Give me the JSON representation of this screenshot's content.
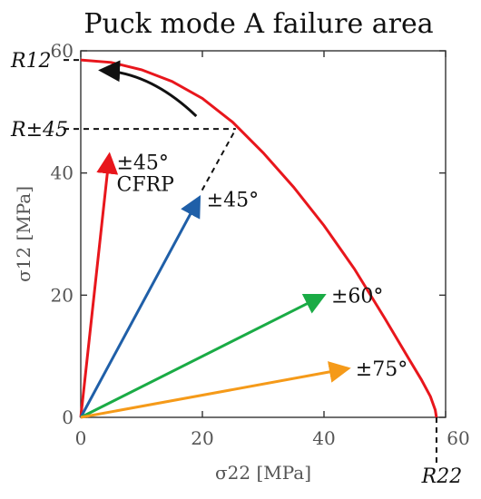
{
  "chart_data": {
    "type": "line",
    "title": "Puck mode A failure area",
    "xlabel": "σ22 [MPa]",
    "ylabel": "σ12 [MPa]",
    "xlim": [
      0,
      60
    ],
    "ylim": [
      0,
      60
    ],
    "xticks": [
      0,
      20,
      40,
      60
    ],
    "yticks": [
      0,
      20,
      40,
      60
    ],
    "grid": false,
    "failure_curve": {
      "color": "#e8161c",
      "points": [
        [
          0,
          58.5
        ],
        [
          5,
          58.1
        ],
        [
          10,
          56.9
        ],
        [
          15,
          55.0
        ],
        [
          20,
          52.2
        ],
        [
          25,
          48.3
        ],
        [
          30,
          43.3
        ],
        [
          35,
          37.7
        ],
        [
          40,
          31.4
        ],
        [
          45,
          24.3
        ],
        [
          50,
          16.2
        ],
        [
          54,
          9.5
        ],
        [
          56,
          6.2
        ],
        [
          57.5,
          3.4
        ],
        [
          58.3,
          1.2
        ],
        [
          58.5,
          0
        ]
      ]
    },
    "reference_values": [
      {
        "label": "R12",
        "x": 0,
        "y": 58.5
      },
      {
        "label": "R±45",
        "x": 25.5,
        "y": 47.2
      },
      {
        "label": "R22",
        "x": 58.5,
        "y": 0
      }
    ],
    "load_paths": [
      {
        "label": "±45°",
        "sublabel": "CFRP",
        "color": "#e8161c",
        "end": [
          4.7,
          43
        ]
      },
      {
        "label": "±45°",
        "color": "#1f5fa8",
        "end": [
          19.5,
          36
        ]
      },
      {
        "label": "±60°",
        "color": "#1aab45",
        "end": [
          40,
          20
        ]
      },
      {
        "label": "±75°",
        "color": "#f59a19",
        "end": [
          44,
          8
        ]
      }
    ],
    "direction_arrow": {
      "color": "#111111",
      "from": [
        19,
        49.3
      ],
      "to": [
        3.3,
        56.8
      ]
    }
  }
}
